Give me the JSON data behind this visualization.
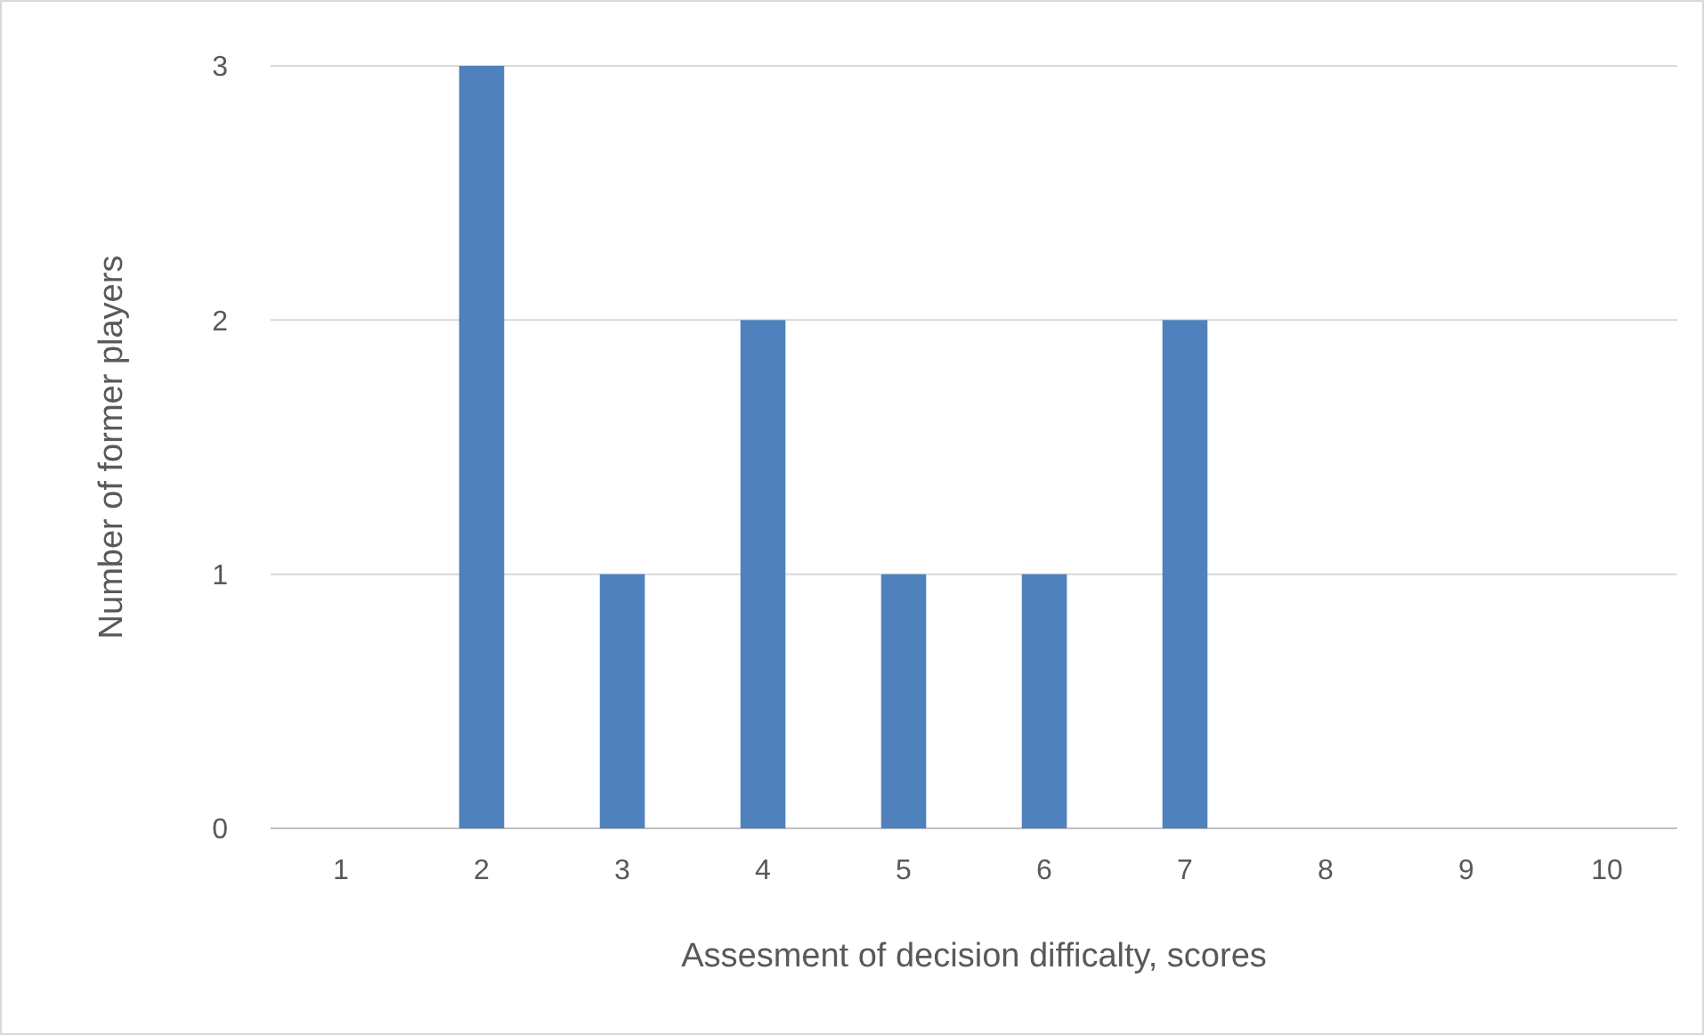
{
  "chart_data": {
    "type": "bar",
    "xlabel": "Assesment of decision difficalty, scores",
    "ylabel": "Number of former players",
    "categories": [
      "1",
      "2",
      "3",
      "4",
      "5",
      "6",
      "7",
      "8",
      "9",
      "10"
    ],
    "values": [
      0,
      3,
      1,
      2,
      1,
      1,
      2,
      0,
      0,
      0
    ],
    "color": "#4f81bd",
    "ylim": [
      0,
      3
    ],
    "yticks": [
      0,
      1,
      2,
      3
    ],
    "grid": "y"
  }
}
